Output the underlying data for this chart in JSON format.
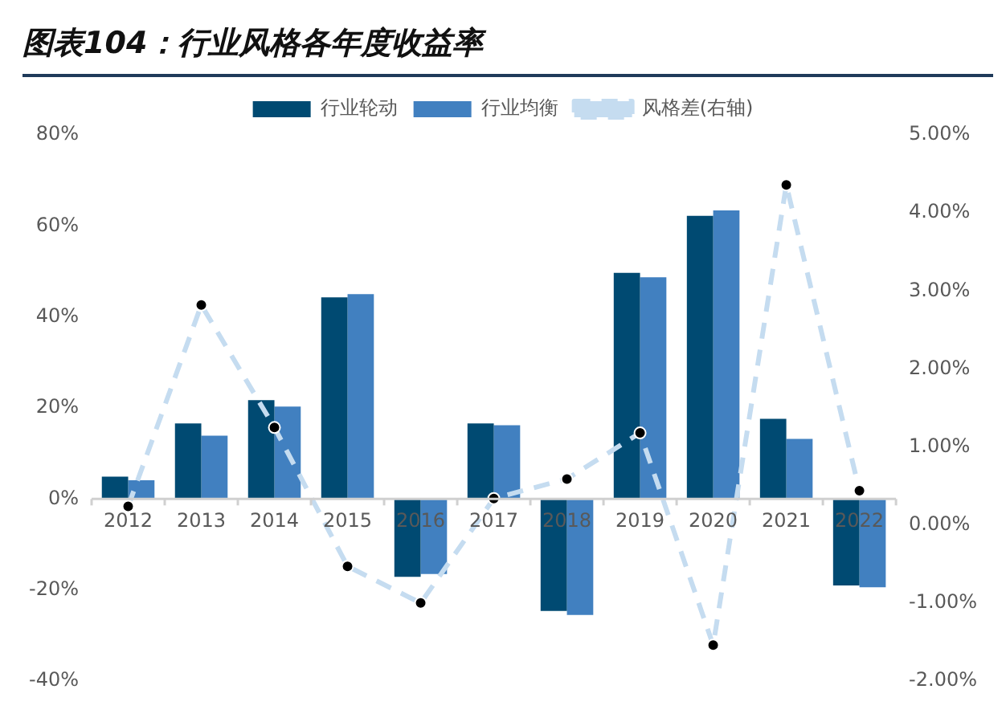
{
  "chart_data": {
    "type": "bar",
    "title": "图表104：行业风格各年度收益率",
    "categories": [
      "2012",
      "2013",
      "2014",
      "2015",
      "2016",
      "2017",
      "2018",
      "2019",
      "2020",
      "2021",
      "2022"
    ],
    "series": [
      {
        "name": "行业轮动",
        "color": "#004a72",
        "values": [
          4.9,
          16.6,
          21.7,
          44.3,
          -17.1,
          16.6,
          -24.6,
          49.7,
          62.2,
          17.6,
          -19.0
        ]
      },
      {
        "name": "行业均衡",
        "color": "#4180c0",
        "values": [
          4.1,
          13.9,
          20.3,
          45.0,
          -16.5,
          16.2,
          -25.5,
          48.7,
          63.4,
          13.2,
          -19.4
        ]
      },
      {
        "name": "风格差(右轴)",
        "type": "line",
        "axis": "y2",
        "color": "#c5dcf0",
        "line_style": "dashed",
        "marker": "circle",
        "values": [
          0.24,
          2.82,
          1.25,
          -0.53,
          -1.0,
          0.34,
          0.59,
          1.18,
          -1.54,
          4.36,
          0.44
        ]
      }
    ],
    "ylim": [
      -40,
      80
    ],
    "yticks": [
      {
        "value": -40,
        "label": "-40%"
      },
      {
        "value": -20,
        "label": "-20%"
      },
      {
        "value": 0,
        "label": "0%"
      },
      {
        "value": 20,
        "label": "20%"
      },
      {
        "value": 40,
        "label": "40%"
      },
      {
        "value": 60,
        "label": "60%"
      },
      {
        "value": 80,
        "label": "80%"
      }
    ],
    "y2lim": [
      -2,
      5
    ],
    "y2ticks": [
      {
        "value": -2,
        "label": "-2.00%"
      },
      {
        "value": -1,
        "label": "-1.00%"
      },
      {
        "value": 0,
        "label": "0.00%"
      },
      {
        "value": 1,
        "label": "1.00%"
      },
      {
        "value": 2,
        "label": "2.00%"
      },
      {
        "value": 3,
        "label": "3.00%"
      },
      {
        "value": 4,
        "label": "4.00%"
      },
      {
        "value": 5,
        "label": "5.00%"
      }
    ],
    "grid": false,
    "legend": "top"
  }
}
